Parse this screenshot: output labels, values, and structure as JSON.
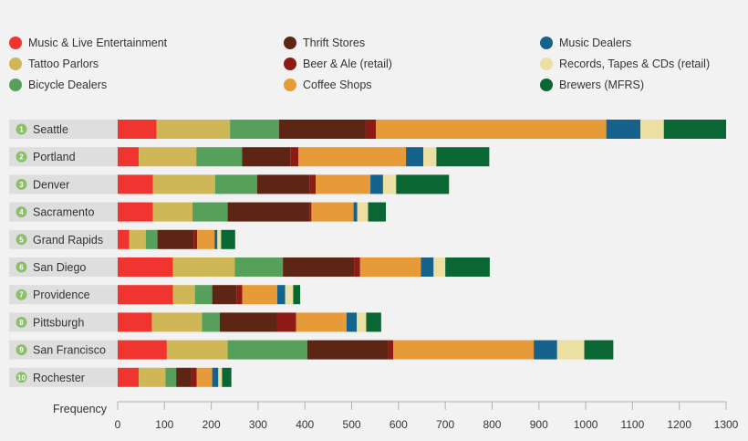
{
  "chart_data": {
    "type": "bar",
    "orientation": "horizontal",
    "stacked": true,
    "title": "",
    "xlabel": "Frequency",
    "ylabel": "",
    "xlim": [
      0,
      1300
    ],
    "xticks": [
      0,
      100,
      200,
      300,
      400,
      500,
      600,
      700,
      800,
      900,
      1000,
      1100,
      1200,
      1300
    ],
    "grid": false,
    "legend_position": "top",
    "categories": [
      "Seattle",
      "Portland",
      "Denver",
      "Sacramento",
      "Grand Rapids",
      "San Diego",
      "Providence",
      "Pittsburgh",
      "San Francisco",
      "Rochester"
    ],
    "ranks": [
      "1",
      "2",
      "3",
      "4",
      "5",
      "6",
      "7",
      "8",
      "9",
      "10"
    ],
    "series": [
      {
        "name": "Music & Live Entertainment",
        "color": "#f0342f",
        "values": [
          83,
          45,
          75,
          75,
          25,
          118,
          118,
          73,
          105,
          45
        ]
      },
      {
        "name": "Tattoo Parlors",
        "color": "#cfb656",
        "values": [
          157,
          123,
          133,
          85,
          35,
          132,
          47,
          107,
          130,
          57
        ]
      },
      {
        "name": "Bicycle Dealers",
        "color": "#56a05c",
        "values": [
          105,
          98,
          90,
          75,
          25,
          103,
          37,
          38,
          170,
          23
        ]
      },
      {
        "name": "Thrift Stores",
        "color": "#5c2514",
        "values": [
          185,
          103,
          112,
          175,
          77,
          152,
          52,
          123,
          172,
          32
        ]
      },
      {
        "name": "Beer & Ale (retail)",
        "color": "#8e1a16",
        "values": [
          22,
          17,
          13,
          4,
          8,
          13,
          12,
          40,
          12,
          12
        ]
      },
      {
        "name": "Coffee Shops",
        "color": "#e69a38",
        "values": [
          492,
          230,
          117,
          90,
          37,
          130,
          75,
          108,
          300,
          33
        ]
      },
      {
        "name": "Music Dealers",
        "color": "#15628c",
        "values": [
          73,
          37,
          27,
          8,
          6,
          27,
          17,
          22,
          50,
          13
        ]
      },
      {
        "name": "Records, Tapes & CDs (retail)",
        "color": "#ebdfa1",
        "values": [
          50,
          28,
          28,
          23,
          8,
          25,
          17,
          20,
          58,
          8
        ]
      },
      {
        "name": "Brewers (MFRS)",
        "color": "#0a6633",
        "values": [
          133,
          113,
          113,
          38,
          30,
          95,
          15,
          32,
          62,
          20
        ]
      }
    ]
  }
}
